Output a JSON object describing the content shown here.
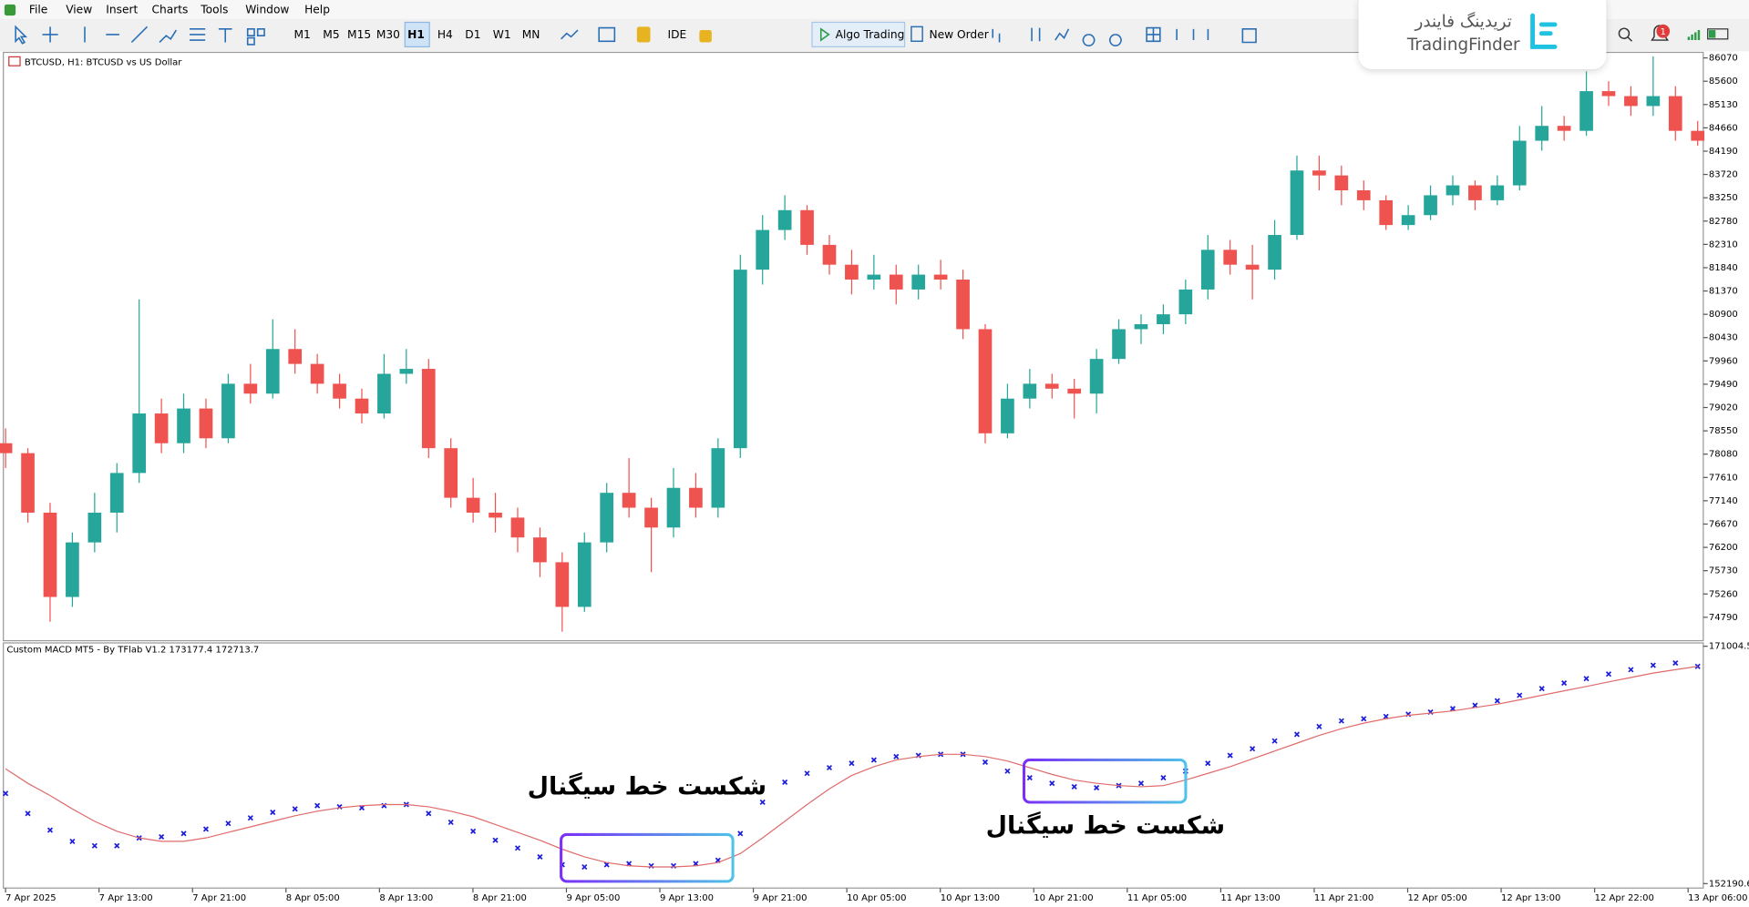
{
  "menu": [
    "File",
    "View",
    "Insert",
    "Charts",
    "Tools",
    "Window",
    "Help"
  ],
  "toolbar": {
    "timeframes": [
      "M1",
      "M5",
      "M15",
      "M30",
      "H1",
      "H4",
      "D1",
      "W1",
      "MN"
    ],
    "active": "H1",
    "ide": "IDE",
    "algo": "Algo Trading",
    "new_order": "New Order"
  },
  "logo": {
    "fa": "تریدینگ فایندر",
    "en": "TradingFinder"
  },
  "notification_count": 1,
  "chart_data": [
    {
      "type": "candlestick",
      "title": "BTCUSD, H1:  BTCUSD vs US Dollar",
      "up_color": "#26a69a",
      "down_color": "#ef5350",
      "ylim": [
        74318,
        86182
      ],
      "yticks": [
        74790,
        75260,
        75730,
        76200,
        76670,
        77140,
        77610,
        78080,
        78550,
        79020,
        79490,
        79960,
        80430,
        80900,
        81370,
        81840,
        82310,
        82780,
        83250,
        83720,
        84190,
        84660,
        85130,
        85600,
        86070
      ],
      "ohlc": [
        [
          78300,
          78600,
          77800,
          78100
        ],
        [
          78100,
          78200,
          76700,
          76900
        ],
        [
          76900,
          77100,
          74700,
          75200
        ],
        [
          75200,
          76500,
          75000,
          76300
        ],
        [
          76300,
          77300,
          76100,
          76900
        ],
        [
          76900,
          77900,
          76500,
          77700
        ],
        [
          77700,
          81200,
          77500,
          78900
        ],
        [
          78900,
          79200,
          78100,
          78300
        ],
        [
          78300,
          79300,
          78100,
          79000
        ],
        [
          79000,
          79200,
          78200,
          78400
        ],
        [
          78400,
          79700,
          78300,
          79500
        ],
        [
          79500,
          79900,
          79100,
          79300
        ],
        [
          79300,
          80800,
          79200,
          80200
        ],
        [
          80200,
          80600,
          79700,
          79900
        ],
        [
          79900,
          80100,
          79300,
          79500
        ],
        [
          79500,
          79700,
          79000,
          79200
        ],
        [
          79200,
          79400,
          78700,
          78900
        ],
        [
          78900,
          80100,
          78800,
          79700
        ],
        [
          79700,
          80200,
          79500,
          79800
        ],
        [
          79800,
          80000,
          78000,
          78200
        ],
        [
          78200,
          78400,
          77000,
          77200
        ],
        [
          77200,
          77600,
          76700,
          76900
        ],
        [
          76900,
          77300,
          76500,
          76800
        ],
        [
          76800,
          77000,
          76100,
          76400
        ],
        [
          76400,
          76600,
          75600,
          75900
        ],
        [
          75900,
          76100,
          74500,
          75000
        ],
        [
          75000,
          76500,
          74900,
          76300
        ],
        [
          76300,
          77500,
          76100,
          77300
        ],
        [
          77300,
          78000,
          76800,
          77000
        ],
        [
          77000,
          77200,
          75700,
          76600
        ],
        [
          76600,
          77800,
          76400,
          77400
        ],
        [
          77400,
          77700,
          76800,
          77000
        ],
        [
          77000,
          78400,
          76800,
          78200
        ],
        [
          78200,
          82100,
          78000,
          81800
        ],
        [
          81800,
          82900,
          81500,
          82600
        ],
        [
          82600,
          83300,
          82400,
          83000
        ],
        [
          83000,
          83100,
          82100,
          82300
        ],
        [
          82300,
          82500,
          81700,
          81900
        ],
        [
          81900,
          82200,
          81300,
          81600
        ],
        [
          81600,
          82100,
          81400,
          81700
        ],
        [
          81700,
          81900,
          81100,
          81400
        ],
        [
          81400,
          81900,
          81200,
          81700
        ],
        [
          81700,
          82000,
          81400,
          81600
        ],
        [
          81600,
          81800,
          80400,
          80600
        ],
        [
          80600,
          80700,
          78300,
          78500
        ],
        [
          78500,
          79500,
          78400,
          79200
        ],
        [
          79200,
          79800,
          79000,
          79500
        ],
        [
          79500,
          79700,
          79200,
          79400
        ],
        [
          79400,
          79600,
          78800,
          79300
        ],
        [
          79300,
          80200,
          78900,
          80000
        ],
        [
          80000,
          80800,
          79900,
          80600
        ],
        [
          80600,
          80900,
          80300,
          80700
        ],
        [
          80700,
          81100,
          80500,
          80900
        ],
        [
          80900,
          81600,
          80700,
          81400
        ],
        [
          81400,
          82500,
          81200,
          82200
        ],
        [
          82200,
          82400,
          81700,
          81900
        ],
        [
          81900,
          82300,
          81200,
          81800
        ],
        [
          81800,
          82800,
          81600,
          82500
        ],
        [
          82500,
          84100,
          82400,
          83800
        ],
        [
          83800,
          84100,
          83400,
          83700
        ],
        [
          83700,
          83900,
          83100,
          83400
        ],
        [
          83400,
          83600,
          83000,
          83200
        ],
        [
          83200,
          83300,
          82600,
          82700
        ],
        [
          82700,
          83100,
          82600,
          82900
        ],
        [
          82900,
          83500,
          82800,
          83300
        ],
        [
          83300,
          83700,
          83100,
          83500
        ],
        [
          83500,
          83600,
          83000,
          83200
        ],
        [
          83200,
          83700,
          83100,
          83500
        ],
        [
          83500,
          84700,
          83400,
          84400
        ],
        [
          84400,
          85100,
          84200,
          84700
        ],
        [
          84700,
          84900,
          84400,
          84600
        ],
        [
          84600,
          85800,
          84500,
          85400
        ],
        [
          85400,
          85600,
          85100,
          85300
        ],
        [
          85300,
          85500,
          84900,
          85100
        ],
        [
          85100,
          86100,
          84900,
          85300
        ],
        [
          85300,
          85500,
          84400,
          84600
        ],
        [
          84600,
          84800,
          84300,
          84400
        ]
      ]
    },
    {
      "type": "line",
      "title": "Custom MACD MT5 - By TFlab V1.2 173177.4 172713.7",
      "ylim": [
        151837,
        171270
      ],
      "yticks": [
        152190.6,
        171004.5
      ],
      "series": [
        {
          "color": "#1c1cdc",
          "marker": "x",
          "values": [
            159340,
            157750,
            156430,
            155540,
            155190,
            155190,
            155810,
            155900,
            156160,
            156510,
            156960,
            157400,
            157840,
            158110,
            158370,
            158280,
            158200,
            158370,
            158460,
            157750,
            157050,
            156340,
            155630,
            155010,
            154310,
            153690,
            153510,
            153690,
            153770,
            153600,
            153600,
            153770,
            154040,
            156160,
            158640,
            160230,
            160930,
            161380,
            161730,
            161990,
            162260,
            162350,
            162440,
            162440,
            161820,
            161110,
            160580,
            160140,
            159870,
            159790,
            159960,
            160140,
            160580,
            161110,
            161730,
            162350,
            162880,
            163500,
            164020,
            164640,
            165090,
            165260,
            165440,
            165620,
            165790,
            166060,
            166320,
            166680,
            167120,
            167650,
            168090,
            168440,
            168800,
            169150,
            169500,
            169680,
            169410
          ]
        },
        {
          "color": "#e06b6b",
          "values": [
            161290,
            160140,
            159170,
            158110,
            157130,
            156340,
            155810,
            155540,
            155540,
            155810,
            156250,
            156690,
            157130,
            157570,
            157930,
            158200,
            158370,
            158460,
            158460,
            158280,
            157930,
            157490,
            156870,
            156250,
            155630,
            154920,
            154310,
            153860,
            153600,
            153510,
            153510,
            153600,
            153860,
            154570,
            155810,
            157130,
            158460,
            159700,
            160760,
            161460,
            161990,
            162260,
            162440,
            162440,
            162260,
            161910,
            161380,
            160850,
            160400,
            160140,
            159960,
            159870,
            159960,
            160400,
            160930,
            161460,
            162080,
            162700,
            163320,
            163940,
            164470,
            164910,
            165260,
            165530,
            165700,
            165880,
            166150,
            166410,
            166760,
            167120,
            167470,
            167820,
            168180,
            168530,
            168880,
            169150,
            169410
          ]
        }
      ],
      "time_labels": [
        "7 Apr 2025",
        "7 Apr 13:00",
        "7 Apr 21:00",
        "8 Apr 05:00",
        "8 Apr 13:00",
        "8 Apr 21:00",
        "9 Apr 05:00",
        "9 Apr 13:00",
        "9 Apr 21:00",
        "10 Apr 05:00",
        "10 Apr 13:00",
        "10 Apr 21:00",
        "11 Apr 05:00",
        "11 Apr 13:00",
        "11 Apr 21:00",
        "12 Apr 05:00",
        "12 Apr 13:00",
        "12 Apr 22:00",
        "13 Apr 06:00"
      ],
      "annotations": [
        "شکست خط سیگنال",
        "شکست خط سیگنال"
      ]
    }
  ]
}
